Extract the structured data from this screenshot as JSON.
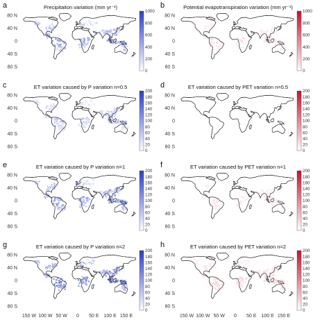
{
  "figure": {
    "x_tick_labels": [
      "150 W",
      "100 W",
      "50 W",
      "0",
      "50 E",
      "100 E",
      "150 E"
    ],
    "y_tick_labels": [
      "80 N",
      "40 N",
      "0",
      "40 S",
      "80 S"
    ],
    "panels": [
      {
        "letter": "a",
        "title": "Precipitaiton variation (mm yr⁻¹)",
        "cmap": "blue",
        "colorbar_ticks": [
          "1000",
          "800",
          "600",
          "400",
          "200",
          "0"
        ],
        "intensity": 0.55
      },
      {
        "letter": "b",
        "title": "Potential evapotranspiration variation (mm yr⁻¹)",
        "cmap": "red",
        "colorbar_ticks": [
          "1000",
          "800",
          "600",
          "400",
          "200",
          "0"
        ],
        "intensity": 0.15
      },
      {
        "letter": "c",
        "title": "ET variation caused by P variation n=0.5",
        "cmap": "blue",
        "colorbar_ticks": [
          "200",
          "180",
          "160",
          "140",
          "120",
          "100",
          "80",
          "60",
          "40",
          "20",
          "0"
        ],
        "intensity": 0.35
      },
      {
        "letter": "d",
        "title": "ET variation caused by PET variation n=0.5",
        "cmap": "red",
        "colorbar_ticks": [
          "200",
          "180",
          "160",
          "140",
          "120",
          "100",
          "80",
          "60",
          "40",
          "20",
          "0"
        ],
        "intensity": 0.03
      },
      {
        "letter": "e",
        "title": "ET variation caused by P variation n=1",
        "cmap": "blue",
        "colorbar_ticks": [
          "200",
          "180",
          "160",
          "140",
          "120",
          "100",
          "80",
          "60",
          "40",
          "20",
          "0"
        ],
        "intensity": 0.6
      },
      {
        "letter": "f",
        "title": "ET variation caused by PET variation n=1",
        "cmap": "red",
        "colorbar_ticks": [
          "200",
          "180",
          "160",
          "140",
          "120",
          "100",
          "80",
          "60",
          "40",
          "20",
          "0"
        ],
        "intensity": 0.12
      },
      {
        "letter": "g",
        "title": "ET variation caused by P variation n=2",
        "cmap": "blue",
        "colorbar_ticks": [
          "200",
          "180",
          "160",
          "140",
          "120",
          "100",
          "80",
          "60",
          "40",
          "20",
          "0"
        ],
        "intensity": 0.8
      },
      {
        "letter": "h",
        "title": "ET variation caused by PET variation n=2",
        "cmap": "red",
        "colorbar_ticks": [
          "200",
          "180",
          "160",
          "140",
          "120",
          "100",
          "80",
          "60",
          "40",
          "20",
          "0"
        ],
        "intensity": 0.2
      }
    ],
    "colors": {
      "blue_high": "#2a3fc8",
      "blue_low": "#ffffff",
      "red_high": "#c8102e",
      "red_low": "#ffffff"
    }
  }
}
